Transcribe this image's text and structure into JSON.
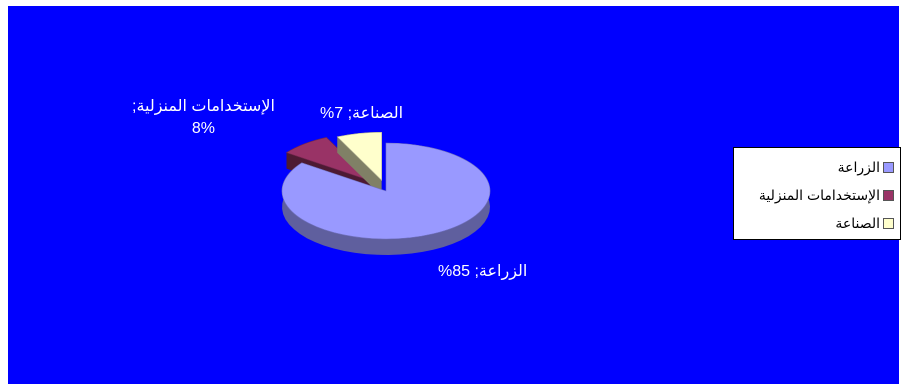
{
  "chart_data": {
    "type": "pie",
    "style": "3d-exploded",
    "categories": [
      "الزراعة",
      "الإستخدامات المنزلية",
      "الصناعة"
    ],
    "values": [
      85,
      8,
      7
    ],
    "unit": "%",
    "colors": [
      "#9999ff",
      "#993366",
      "#ffffcc"
    ],
    "background": "#0000ff",
    "legend_position": "right",
    "data_labels": [
      {
        "text": "الزراعة; 85%"
      },
      {
        "line1": "الإستخدامات المنزلية;",
        "line2": "8%"
      },
      {
        "text": "الصناعة; 7%"
      }
    ]
  },
  "legend": {
    "items": [
      "الزراعة",
      "الإستخدامات المنزلية",
      "الصناعة"
    ]
  }
}
